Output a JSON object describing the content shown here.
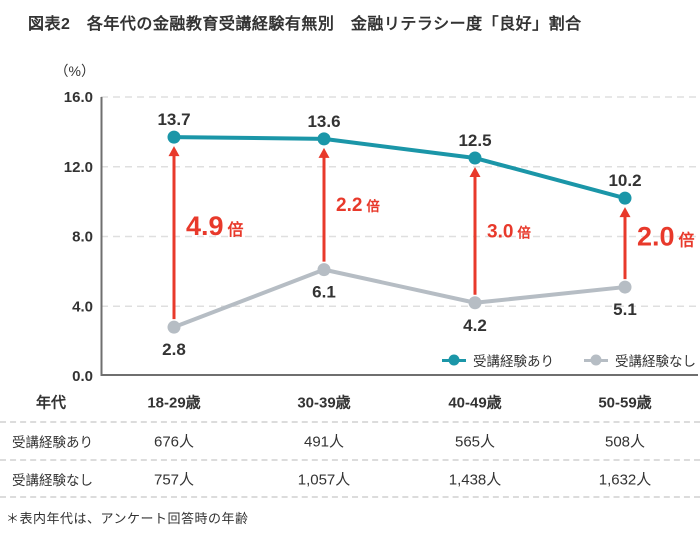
{
  "title": "図表2　各年代の金融教育受講経験有無別　金融リテラシー度「良好」割合",
  "chart_data": {
    "type": "line",
    "unit_label": "（%）",
    "categories": [
      "18-29歳",
      "30-39歳",
      "40-49歳",
      "50-59歳"
    ],
    "y_ticks": [
      16.0,
      12.0,
      8.0,
      4.0,
      0.0
    ],
    "ylim": [
      0,
      16
    ],
    "grid": "horizontal-dashed",
    "legend_position": "bottom-right-inside",
    "series": [
      {
        "name": "受講経験あり",
        "color": "#1b96a8",
        "values": [
          13.7,
          13.6,
          12.5,
          10.2
        ]
      },
      {
        "name": "受講経験なし",
        "color": "#b6bdc4",
        "values": [
          2.8,
          6.1,
          4.2,
          5.1
        ]
      }
    ],
    "ratio_annotations": [
      {
        "value": "4.9",
        "suffix": "倍",
        "emphasis": true
      },
      {
        "value": "2.2",
        "suffix": "倍",
        "emphasis": false
      },
      {
        "value": "3.0",
        "suffix": "倍",
        "emphasis": false
      },
      {
        "value": "2.0",
        "suffix": "倍",
        "emphasis": true
      }
    ],
    "arrow_color": "#e8392b",
    "axis_color": "#6f6f6f",
    "grid_color": "#dfdfdf",
    "label_color": "#333333"
  },
  "legend": {
    "items": [
      {
        "label": "受講経験あり",
        "color": "#1b96a8"
      },
      {
        "label": "受講経験なし",
        "color": "#b6bdc4"
      }
    ]
  },
  "table": {
    "header_label": "年代",
    "columns": [
      "18-29歳",
      "30-39歳",
      "40-49歳",
      "50-59歳"
    ],
    "rows": [
      {
        "label": "受講経験あり",
        "values": [
          "676人",
          "491人",
          "565人",
          "508人"
        ]
      },
      {
        "label": "受講経験なし",
        "values": [
          "757人",
          "1,057人",
          "1,438人",
          "1,632人"
        ]
      }
    ]
  },
  "footnote": "＊表内年代は、アンケート回答時の年齢"
}
